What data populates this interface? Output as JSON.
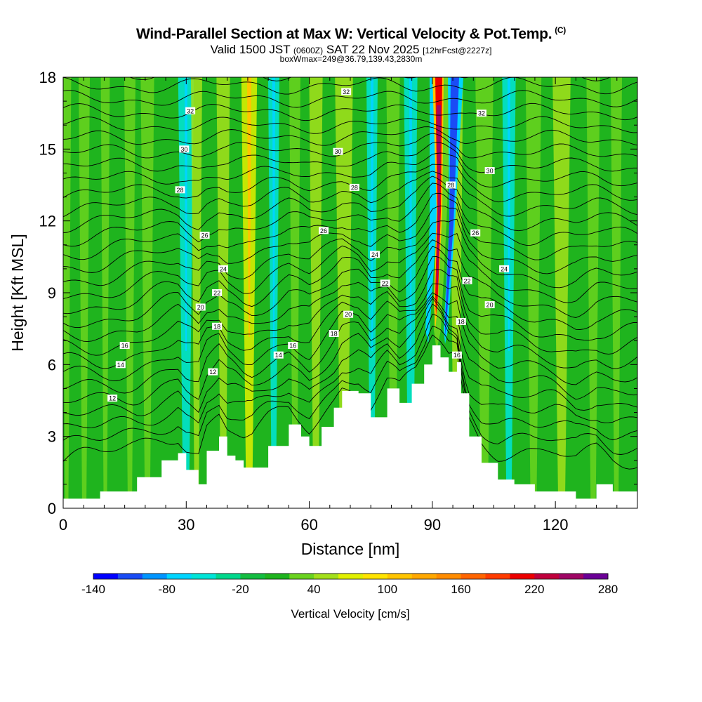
{
  "title": {
    "main": "Wind-Parallel Section at Max W: Vertical Velocity & Pot.Temp.",
    "copyright": "(C)",
    "valid_prefix": "Valid 1500 JST",
    "valid_z": "(0600Z)",
    "valid_date": "SAT 22 Nov 2025",
    "forecast": "[12hrFcst@2227z]",
    "box_info": "boxWmax=249@36.79,139.43,2830m"
  },
  "chart_data": {
    "type": "heatmap",
    "title": "Wind-Parallel Section at Max W: Vertical Velocity & Pot.Temp.",
    "xlabel": "Distance [nm]",
    "ylabel": "Height [Kft MSL]",
    "xlim": [
      0,
      140
    ],
    "ylim": [
      0,
      18
    ],
    "x_ticks": [
      0,
      30,
      60,
      90,
      120
    ],
    "x_tick_labels": [
      "0",
      "30",
      "60",
      "90",
      "120"
    ],
    "y_ticks": [
      0,
      3,
      6,
      9,
      12,
      15,
      18
    ],
    "y_tick_labels": [
      "0",
      "3",
      "6",
      "9",
      "12",
      "15",
      "18"
    ],
    "colorbar": {
      "title": "Vertical Velocity [cm/s]",
      "levels": [
        -140,
        -120,
        -100,
        -80,
        -60,
        -40,
        -20,
        0,
        20,
        40,
        60,
        80,
        100,
        120,
        140,
        160,
        180,
        200,
        220,
        240,
        260,
        280
      ],
      "colors": [
        "#0000ff",
        "#1a4cf5",
        "#0095ff",
        "#00d5ff",
        "#00e5d8",
        "#00d88c",
        "#14bd41",
        "#1fb41e",
        "#6ad31f",
        "#a3e01b",
        "#e1f000",
        "#ffe400",
        "#ffc500",
        "#ffa800",
        "#ff8c00",
        "#ff6500",
        "#ff3c00",
        "#ec0000",
        "#bf003d",
        "#9f0565",
        "#6b0096"
      ],
      "tick_labels": [
        "-140",
        "-80",
        "-20",
        "40",
        "100",
        "160",
        "220",
        "280"
      ]
    },
    "terrain_profile": {
      "x": [
        0,
        9,
        18,
        24,
        28,
        30,
        33,
        35,
        38,
        40,
        42,
        44,
        46,
        50,
        55,
        58,
        60,
        63,
        66,
        68,
        72,
        75,
        79,
        82,
        85,
        88,
        90,
        92,
        94,
        96,
        97,
        99,
        102,
        106,
        110,
        115,
        120,
        125,
        130,
        134,
        140
      ],
      "height": [
        0.4,
        0.7,
        1.3,
        2.0,
        2.3,
        1.6,
        1.0,
        2.4,
        3.0,
        2.2,
        2.0,
        1.7,
        1.7,
        2.6,
        3.5,
        3.0,
        2.6,
        3.4,
        4.2,
        4.9,
        4.8,
        3.8,
        5.0,
        4.4,
        5.2,
        6.0,
        6.8,
        6.3,
        5.7,
        6.1,
        4.8,
        3.0,
        1.9,
        1.2,
        1.0,
        0.7,
        0.7,
        0.4,
        1.0,
        0.7,
        0.7
      ]
    },
    "theta_contour_labels": [
      {
        "value": "32",
        "x": 31,
        "y": 16.6
      },
      {
        "value": "32",
        "x": 69,
        "y": 17.4
      },
      {
        "value": "32",
        "x": 102,
        "y": 16.5
      },
      {
        "value": "30",
        "x": 29.5,
        "y": 15.0
      },
      {
        "value": "30",
        "x": 67,
        "y": 14.9
      },
      {
        "value": "30",
        "x": 104,
        "y": 14.1
      },
      {
        "value": "28",
        "x": 28.5,
        "y": 13.3
      },
      {
        "value": "28",
        "x": 71,
        "y": 13.4
      },
      {
        "value": "28",
        "x": 94.5,
        "y": 13.5
      },
      {
        "value": "26",
        "x": 34.5,
        "y": 11.4
      },
      {
        "value": "26",
        "x": 63.5,
        "y": 11.6
      },
      {
        "value": "26",
        "x": 100.5,
        "y": 11.5
      },
      {
        "value": "24",
        "x": 39,
        "y": 10.0
      },
      {
        "value": "24",
        "x": 76,
        "y": 10.6
      },
      {
        "value": "24",
        "x": 107.5,
        "y": 10.0
      },
      {
        "value": "22",
        "x": 37.5,
        "y": 9.0
      },
      {
        "value": "22",
        "x": 78.5,
        "y": 9.4
      },
      {
        "value": "22",
        "x": 98.5,
        "y": 9.5
      },
      {
        "value": "20",
        "x": 33.5,
        "y": 8.4
      },
      {
        "value": "20",
        "x": 69.5,
        "y": 8.1
      },
      {
        "value": "20",
        "x": 104,
        "y": 8.5
      },
      {
        "value": "18",
        "x": 37.5,
        "y": 7.6
      },
      {
        "value": "18",
        "x": 66,
        "y": 7.3
      },
      {
        "value": "18",
        "x": 97,
        "y": 7.8
      },
      {
        "value": "16",
        "x": 15,
        "y": 6.8
      },
      {
        "value": "16",
        "x": 56,
        "y": 6.8
      },
      {
        "value": "16",
        "x": 96,
        "y": 6.4
      },
      {
        "value": "14",
        "x": 14,
        "y": 6.0
      },
      {
        "value": "14",
        "x": 52.5,
        "y": 6.4
      },
      {
        "value": "12",
        "x": 12,
        "y": 4.6
      },
      {
        "value": "12",
        "x": 36.5,
        "y": 5.7
      }
    ]
  }
}
